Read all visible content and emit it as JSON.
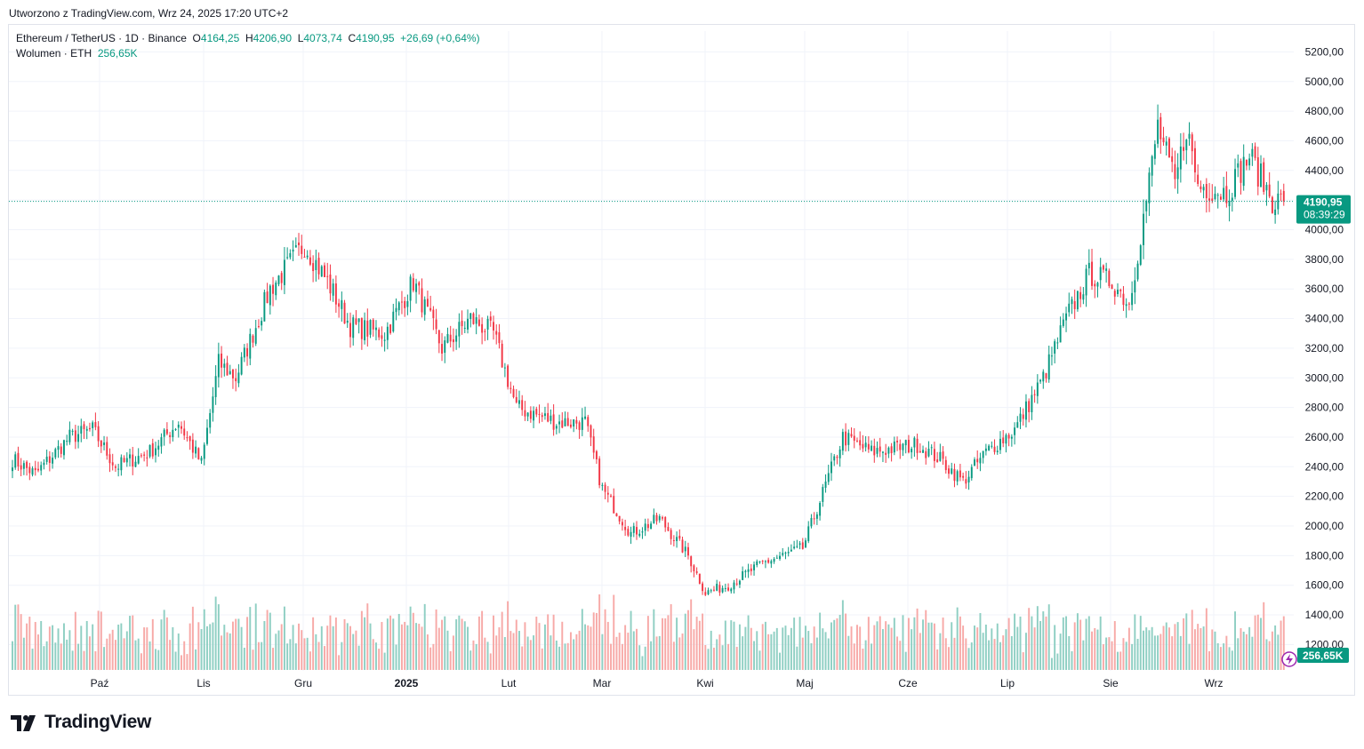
{
  "header": {
    "created_text": "Utworzono z TradingView.com, Wrz 24, 2025 17:20 UTC+2"
  },
  "legend": {
    "symbol": "Ethereum / TetherUS · 1D · Binance",
    "o_label": "O",
    "o_value": "4164,25",
    "h_label": "H",
    "h_value": "4206,90",
    "l_label": "L",
    "l_value": "4073,74",
    "c_label": "C",
    "c_value": "4190,95",
    "change": "+26,69 (+0,64%)",
    "volume_label": "Wolumen · ETH",
    "volume_value": "256,65K"
  },
  "price_tag": {
    "price": "4190,95",
    "countdown": "08:39:29"
  },
  "volume_tag": {
    "value": "256,65K"
  },
  "brand": {
    "name": "TradingView"
  },
  "colors": {
    "up": "#089981",
    "down": "#f23645",
    "up_vol": "#8fcfc3",
    "down_vol": "#f7a9a7",
    "grid": "#f0f3fa",
    "text": "#131722"
  },
  "chart_data": {
    "type": "candlestick",
    "title": "Ethereum / TetherUS · 1D · Binance",
    "y_axis": {
      "min": 1100,
      "max": 5300,
      "ticks": [
        "5200,00",
        "5000,00",
        "4800,00",
        "4600,00",
        "4400,00",
        "4200,00",
        "4000,00",
        "3800,00",
        "3600,00",
        "3400,00",
        "3200,00",
        "3000,00",
        "2800,00",
        "2600,00",
        "2400,00",
        "2200,00",
        "2000,00",
        "1800,00",
        "1600,00",
        "1400,00",
        "1200,00"
      ]
    },
    "x_axis": {
      "labels": [
        "Paź",
        "Lis",
        "Gru",
        "2025",
        "Lut",
        "Mar",
        "Kwi",
        "Maj",
        "Cze",
        "Lip",
        "Sie",
        "Wrz"
      ]
    },
    "last_price": 4190.95,
    "close_anchors": [
      [
        0,
        2450
      ],
      [
        8,
        2350
      ],
      [
        20,
        2600
      ],
      [
        28,
        2650
      ],
      [
        36,
        2400
      ],
      [
        48,
        2500
      ],
      [
        58,
        2700
      ],
      [
        66,
        2420
      ],
      [
        72,
        3100
      ],
      [
        78,
        3000
      ],
      [
        90,
        3600
      ],
      [
        102,
        3900
      ],
      [
        110,
        3650
      ],
      [
        118,
        3350
      ],
      [
        130,
        3300
      ],
      [
        140,
        3650
      ],
      [
        150,
        3200
      ],
      [
        160,
        3400
      ],
      [
        168,
        3300
      ],
      [
        176,
        2800
      ],
      [
        190,
        2700
      ],
      [
        200,
        2700
      ],
      [
        206,
        2250
      ],
      [
        216,
        1950
      ],
      [
        226,
        2050
      ],
      [
        236,
        1800
      ],
      [
        242,
        1550
      ],
      [
        250,
        1600
      ],
      [
        262,
        1750
      ],
      [
        276,
        1850
      ],
      [
        290,
        2600
      ],
      [
        300,
        2500
      ],
      [
        316,
        2550
      ],
      [
        324,
        2450
      ],
      [
        332,
        2300
      ],
      [
        340,
        2500
      ],
      [
        350,
        2650
      ],
      [
        360,
        3000
      ],
      [
        368,
        3400
      ],
      [
        376,
        3700
      ],
      [
        384,
        3650
      ],
      [
        390,
        3500
      ],
      [
        396,
        4200
      ],
      [
        400,
        4700
      ],
      [
        406,
        4300
      ],
      [
        410,
        4700
      ],
      [
        414,
        4300
      ],
      [
        424,
        4250
      ],
      [
        432,
        4500
      ],
      [
        440,
        4200
      ],
      [
        444,
        4190.95
      ]
    ]
  }
}
